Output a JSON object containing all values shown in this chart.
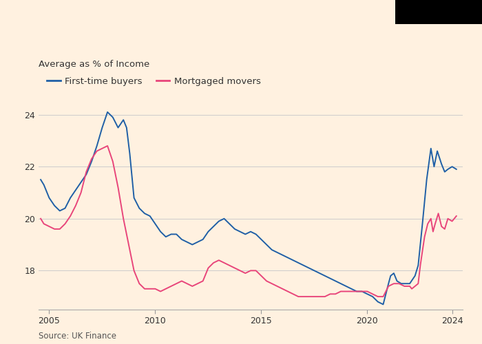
{
  "ylabel": "Average as % of Income",
  "source": "Source: UK Finance",
  "legend": [
    "First-time buyers",
    "Mortgaged movers"
  ],
  "colors": [
    "#1f5fa6",
    "#e8457a"
  ],
  "ylim": [
    16.5,
    25.5
  ],
  "yticks": [
    18,
    20,
    22,
    24
  ],
  "xlim": [
    2004.5,
    2024.5
  ],
  "xticks": [
    2005,
    2010,
    2015,
    2020,
    2024
  ],
  "background_color": "#FFF1E0",
  "header_color": "#000000",
  "ftb": [
    [
      2004.6,
      21.5
    ],
    [
      2004.75,
      21.3
    ],
    [
      2005.0,
      20.8
    ],
    [
      2005.25,
      20.5
    ],
    [
      2005.5,
      20.3
    ],
    [
      2005.75,
      20.4
    ],
    [
      2006.0,
      20.8
    ],
    [
      2006.25,
      21.1
    ],
    [
      2006.5,
      21.4
    ],
    [
      2006.75,
      21.7
    ],
    [
      2007.0,
      22.2
    ],
    [
      2007.25,
      22.8
    ],
    [
      2007.5,
      23.5
    ],
    [
      2007.75,
      24.1
    ],
    [
      2008.0,
      23.9
    ],
    [
      2008.25,
      23.5
    ],
    [
      2008.5,
      23.8
    ],
    [
      2008.65,
      23.5
    ],
    [
      2008.8,
      22.5
    ],
    [
      2009.0,
      20.8
    ],
    [
      2009.25,
      20.4
    ],
    [
      2009.5,
      20.2
    ],
    [
      2009.75,
      20.1
    ],
    [
      2010.0,
      19.8
    ],
    [
      2010.25,
      19.5
    ],
    [
      2010.5,
      19.3
    ],
    [
      2010.75,
      19.4
    ],
    [
      2011.0,
      19.4
    ],
    [
      2011.25,
      19.2
    ],
    [
      2011.5,
      19.1
    ],
    [
      2011.75,
      19.0
    ],
    [
      2012.0,
      19.1
    ],
    [
      2012.25,
      19.2
    ],
    [
      2012.5,
      19.5
    ],
    [
      2012.75,
      19.7
    ],
    [
      2013.0,
      19.9
    ],
    [
      2013.25,
      20.0
    ],
    [
      2013.5,
      19.8
    ],
    [
      2013.75,
      19.6
    ],
    [
      2014.0,
      19.5
    ],
    [
      2014.25,
      19.4
    ],
    [
      2014.5,
      19.5
    ],
    [
      2014.75,
      19.4
    ],
    [
      2015.0,
      19.2
    ],
    [
      2015.25,
      19.0
    ],
    [
      2015.5,
      18.8
    ],
    [
      2015.75,
      18.7
    ],
    [
      2016.0,
      18.6
    ],
    [
      2016.25,
      18.5
    ],
    [
      2016.5,
      18.4
    ],
    [
      2016.75,
      18.3
    ],
    [
      2017.0,
      18.2
    ],
    [
      2017.25,
      18.1
    ],
    [
      2017.5,
      18.0
    ],
    [
      2017.75,
      17.9
    ],
    [
      2018.0,
      17.8
    ],
    [
      2018.25,
      17.7
    ],
    [
      2018.5,
      17.6
    ],
    [
      2018.75,
      17.5
    ],
    [
      2019.0,
      17.4
    ],
    [
      2019.25,
      17.3
    ],
    [
      2019.5,
      17.2
    ],
    [
      2019.75,
      17.2
    ],
    [
      2020.0,
      17.1
    ],
    [
      2020.25,
      17.0
    ],
    [
      2020.5,
      16.8
    ],
    [
      2020.75,
      16.7
    ],
    [
      2021.0,
      17.5
    ],
    [
      2021.1,
      17.8
    ],
    [
      2021.25,
      17.9
    ],
    [
      2021.4,
      17.6
    ],
    [
      2021.6,
      17.5
    ],
    [
      2021.75,
      17.5
    ],
    [
      2022.0,
      17.5
    ],
    [
      2022.25,
      17.8
    ],
    [
      2022.4,
      18.2
    ],
    [
      2022.6,
      19.8
    ],
    [
      2022.8,
      21.5
    ],
    [
      2023.0,
      22.7
    ],
    [
      2023.15,
      22.0
    ],
    [
      2023.3,
      22.6
    ],
    [
      2023.5,
      22.1
    ],
    [
      2023.65,
      21.8
    ],
    [
      2023.8,
      21.9
    ],
    [
      2024.0,
      22.0
    ],
    [
      2024.2,
      21.9
    ]
  ],
  "mm": [
    [
      2004.6,
      20.0
    ],
    [
      2004.75,
      19.8
    ],
    [
      2005.0,
      19.7
    ],
    [
      2005.25,
      19.6
    ],
    [
      2005.5,
      19.6
    ],
    [
      2005.75,
      19.8
    ],
    [
      2006.0,
      20.1
    ],
    [
      2006.25,
      20.5
    ],
    [
      2006.5,
      21.0
    ],
    [
      2006.75,
      21.8
    ],
    [
      2007.0,
      22.3
    ],
    [
      2007.25,
      22.6
    ],
    [
      2007.5,
      22.7
    ],
    [
      2007.75,
      22.8
    ],
    [
      2008.0,
      22.2
    ],
    [
      2008.25,
      21.2
    ],
    [
      2008.5,
      20.0
    ],
    [
      2008.75,
      19.0
    ],
    [
      2009.0,
      18.0
    ],
    [
      2009.25,
      17.5
    ],
    [
      2009.5,
      17.3
    ],
    [
      2009.75,
      17.3
    ],
    [
      2010.0,
      17.3
    ],
    [
      2010.25,
      17.2
    ],
    [
      2010.5,
      17.3
    ],
    [
      2010.75,
      17.4
    ],
    [
      2011.0,
      17.5
    ],
    [
      2011.25,
      17.6
    ],
    [
      2011.5,
      17.5
    ],
    [
      2011.75,
      17.4
    ],
    [
      2012.0,
      17.5
    ],
    [
      2012.25,
      17.6
    ],
    [
      2012.5,
      18.1
    ],
    [
      2012.75,
      18.3
    ],
    [
      2013.0,
      18.4
    ],
    [
      2013.25,
      18.3
    ],
    [
      2013.5,
      18.2
    ],
    [
      2013.75,
      18.1
    ],
    [
      2014.0,
      18.0
    ],
    [
      2014.25,
      17.9
    ],
    [
      2014.5,
      18.0
    ],
    [
      2014.75,
      18.0
    ],
    [
      2015.0,
      17.8
    ],
    [
      2015.25,
      17.6
    ],
    [
      2015.5,
      17.5
    ],
    [
      2015.75,
      17.4
    ],
    [
      2016.0,
      17.3
    ],
    [
      2016.25,
      17.2
    ],
    [
      2016.5,
      17.1
    ],
    [
      2016.75,
      17.0
    ],
    [
      2017.0,
      17.0
    ],
    [
      2017.25,
      17.0
    ],
    [
      2017.5,
      17.0
    ],
    [
      2017.75,
      17.0
    ],
    [
      2018.0,
      17.0
    ],
    [
      2018.25,
      17.1
    ],
    [
      2018.5,
      17.1
    ],
    [
      2018.75,
      17.2
    ],
    [
      2019.0,
      17.2
    ],
    [
      2019.25,
      17.2
    ],
    [
      2019.5,
      17.2
    ],
    [
      2019.75,
      17.2
    ],
    [
      2020.0,
      17.2
    ],
    [
      2020.25,
      17.1
    ],
    [
      2020.5,
      17.0
    ],
    [
      2020.75,
      17.0
    ],
    [
      2021.0,
      17.4
    ],
    [
      2021.25,
      17.5
    ],
    [
      2021.5,
      17.5
    ],
    [
      2021.75,
      17.4
    ],
    [
      2022.0,
      17.4
    ],
    [
      2022.1,
      17.3
    ],
    [
      2022.25,
      17.4
    ],
    [
      2022.4,
      17.5
    ],
    [
      2022.5,
      18.2
    ],
    [
      2022.7,
      19.3
    ],
    [
      2022.85,
      19.8
    ],
    [
      2023.0,
      20.0
    ],
    [
      2023.1,
      19.5
    ],
    [
      2023.2,
      19.8
    ],
    [
      2023.35,
      20.2
    ],
    [
      2023.5,
      19.7
    ],
    [
      2023.65,
      19.6
    ],
    [
      2023.8,
      20.0
    ],
    [
      2024.0,
      19.9
    ],
    [
      2024.2,
      20.1
    ]
  ]
}
